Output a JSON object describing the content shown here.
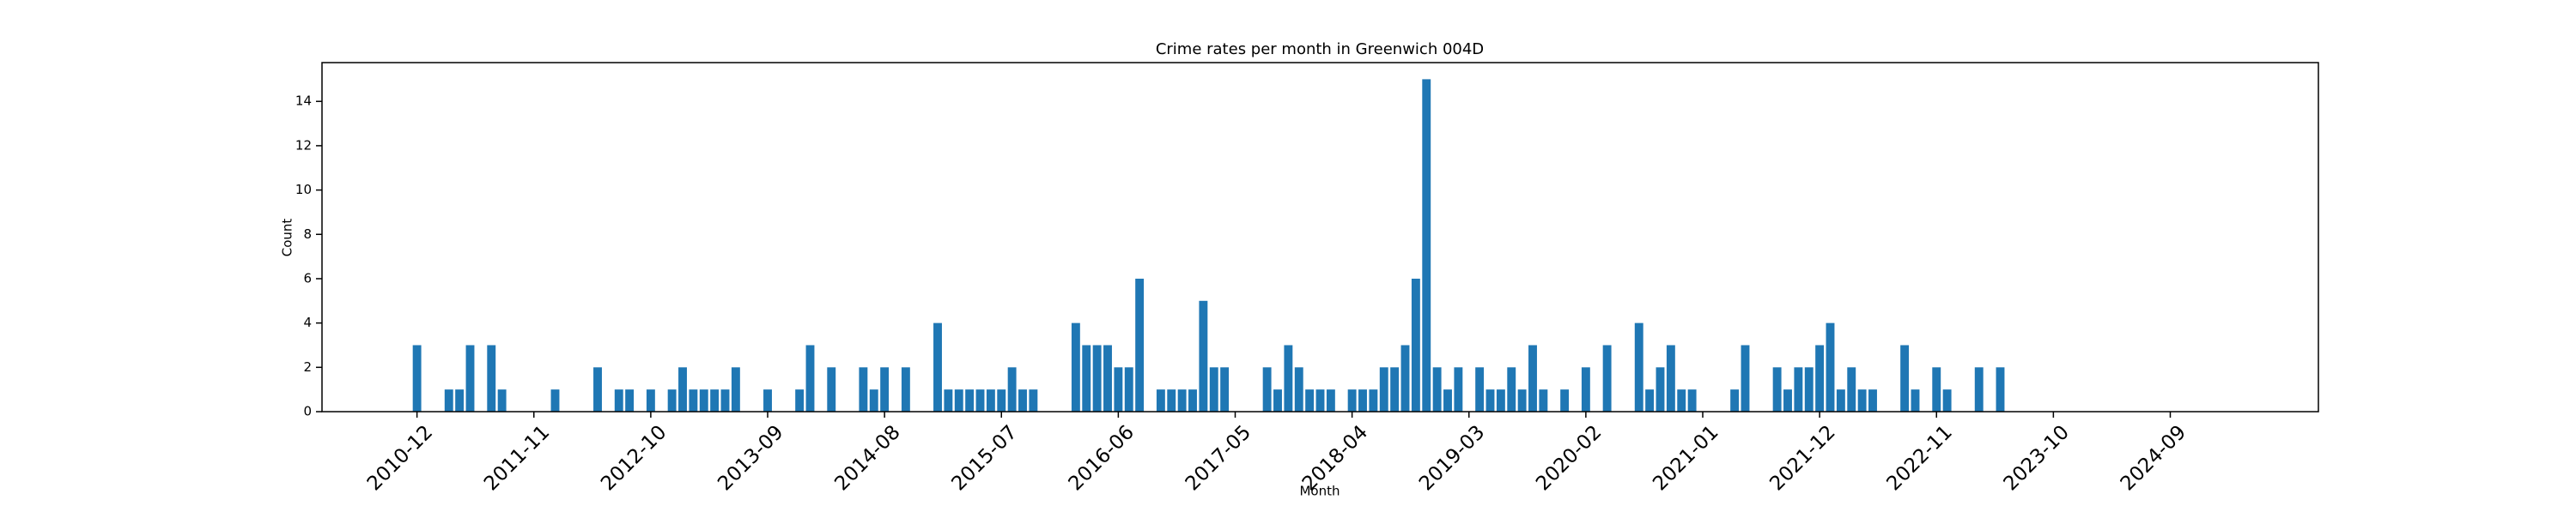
{
  "chart_data": {
    "type": "bar",
    "title": "Crime rates per month in Greenwich 004D",
    "x_label": "Month",
    "y_label": "Count",
    "color": "#1f77b4",
    "categories": [
      "2010-12",
      null,
      null,
      null,
      null,
      null,
      null,
      null,
      null,
      null,
      null,
      "2011-11",
      null,
      null,
      null,
      null,
      null,
      null,
      null,
      null,
      null,
      null,
      "2012-10",
      null,
      null,
      null,
      null,
      null,
      null,
      null,
      null,
      null,
      null,
      "2013-09",
      null,
      null,
      null,
      null,
      null,
      null,
      null,
      null,
      null,
      null,
      "2014-08",
      null,
      null,
      null,
      null,
      null,
      null,
      null,
      null,
      null,
      null,
      "2015-07",
      null,
      null,
      null,
      null,
      null,
      null,
      null,
      null,
      null,
      null,
      "2016-06",
      null,
      null,
      null,
      null,
      null,
      null,
      null,
      null,
      null,
      null,
      "2017-05",
      null,
      null,
      null,
      null,
      null,
      null,
      null,
      null,
      null,
      null,
      "2018-04",
      null,
      null,
      null,
      null,
      null,
      null,
      null,
      null,
      null,
      null,
      "2019-03",
      null,
      null,
      null,
      null,
      null,
      null,
      null,
      null,
      null,
      null,
      "2020-02",
      null,
      null,
      null,
      null,
      null,
      null,
      null,
      null,
      null,
      null,
      "2021-01",
      null,
      null,
      null,
      null,
      null,
      null,
      null,
      null,
      null,
      null,
      "2021-12",
      null,
      null,
      null,
      null,
      null,
      null,
      null,
      null,
      null,
      null,
      "2022-11",
      null,
      null,
      null,
      null,
      null,
      null,
      null,
      null,
      null,
      null,
      "2023-10",
      null,
      null,
      null,
      null,
      null,
      null,
      null,
      null,
      null,
      null,
      "2024-09",
      null,
      null,
      null,
      null,
      null
    ],
    "values": [
      3,
      0,
      0,
      1,
      1,
      3,
      0,
      3,
      1,
      0,
      0,
      0,
      0,
      1,
      0,
      0,
      0,
      2,
      0,
      1,
      1,
      0,
      1,
      0,
      1,
      2,
      1,
      1,
      1,
      1,
      2,
      0,
      0,
      1,
      0,
      0,
      1,
      3,
      0,
      2,
      0,
      0,
      2,
      1,
      2,
      0,
      2,
      0,
      0,
      4,
      1,
      1,
      1,
      1,
      1,
      1,
      2,
      1,
      1,
      0,
      0,
      0,
      4,
      3,
      3,
      3,
      2,
      2,
      6,
      0,
      1,
      1,
      1,
      1,
      5,
      2,
      2,
      0,
      0,
      0,
      2,
      1,
      3,
      2,
      1,
      1,
      1,
      0,
      1,
      1,
      1,
      2,
      2,
      3,
      6,
      15,
      2,
      1,
      2,
      0,
      2,
      1,
      1,
      2,
      1,
      3,
      1,
      0,
      1,
      0,
      2,
      0,
      3,
      0,
      0,
      4,
      1,
      2,
      3,
      1,
      1,
      0,
      0,
      0,
      1,
      3,
      0,
      0,
      2,
      1,
      2,
      2,
      3,
      4,
      1,
      2,
      1,
      1,
      0,
      0,
      3,
      1,
      0,
      2,
      1,
      0,
      0,
      2,
      0,
      2,
      0,
      0,
      0,
      0,
      0,
      0,
      0,
      0,
      0,
      0,
      0,
      0,
      0,
      0,
      0,
      0,
      0,
      0,
      0,
      0,
      0
    ],
    "ylim": [
      0,
      15.75
    ],
    "yticks": [
      0,
      2,
      4,
      6,
      8,
      10,
      12,
      14
    ],
    "grid": false
  }
}
